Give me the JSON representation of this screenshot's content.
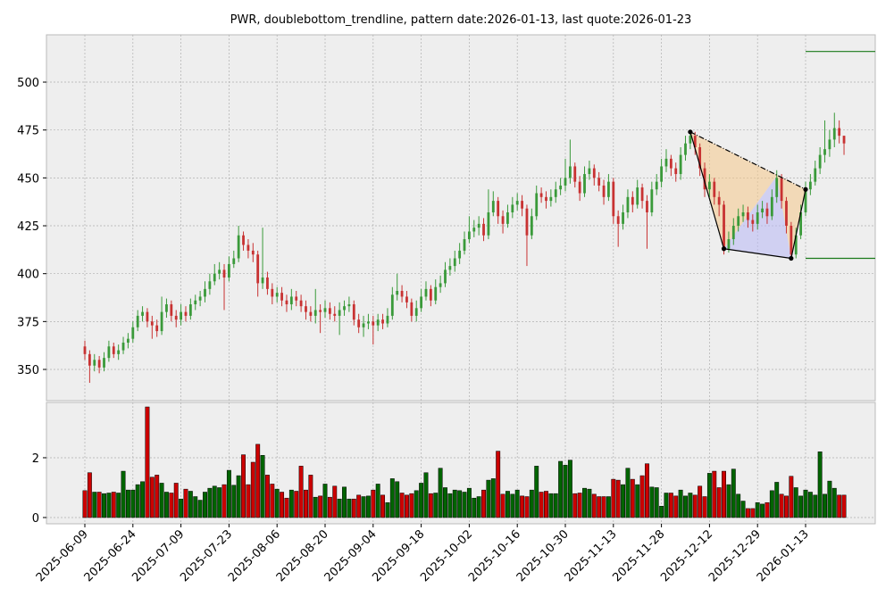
{
  "chart_data": {
    "type": "candlestick",
    "title": "PWR, doublebottom_trendline, pattern date:2026-01-13, last quote:2026-01-23",
    "categories": [
      "2025-06-09",
      null,
      null,
      null,
      null,
      null,
      null,
      null,
      null,
      null,
      "2025-06-24",
      null,
      null,
      null,
      null,
      null,
      null,
      null,
      null,
      null,
      "2025-07-09",
      null,
      null,
      null,
      null,
      null,
      null,
      null,
      null,
      null,
      "2025-07-23",
      null,
      null,
      null,
      null,
      null,
      null,
      null,
      null,
      null,
      "2025-08-06",
      null,
      null,
      null,
      null,
      null,
      null,
      null,
      null,
      null,
      "2025-08-20",
      null,
      null,
      null,
      null,
      null,
      null,
      null,
      null,
      null,
      "2025-09-04",
      null,
      null,
      null,
      null,
      null,
      null,
      null,
      null,
      null,
      "2025-09-18",
      null,
      null,
      null,
      null,
      null,
      null,
      null,
      null,
      null,
      "2025-10-02",
      null,
      null,
      null,
      null,
      null,
      null,
      null,
      null,
      null,
      "2025-10-16",
      null,
      null,
      null,
      null,
      null,
      null,
      null,
      null,
      null,
      "2025-10-30",
      null,
      null,
      null,
      null,
      null,
      null,
      null,
      null,
      null,
      "2025-11-13",
      null,
      null,
      null,
      null,
      null,
      null,
      null,
      null,
      null,
      "2025-11-28",
      null,
      null,
      null,
      null,
      null,
      null,
      null,
      null,
      null,
      "2025-12-12",
      null,
      null,
      null,
      null,
      null,
      null,
      null,
      null,
      null,
      "2025-12-29",
      null,
      null,
      null,
      null,
      null,
      null,
      null,
      null,
      null,
      "2026-01-13",
      null,
      null,
      null,
      null,
      null,
      null,
      null,
      null
    ],
    "open": [
      362,
      358,
      352,
      355,
      351,
      356,
      362,
      358,
      360,
      364,
      366,
      372,
      378,
      380,
      375,
      373,
      370,
      380,
      384,
      378,
      376,
      380,
      378,
      384,
      386,
      388,
      392,
      396,
      400,
      402,
      398,
      405,
      408,
      420,
      415,
      412,
      410,
      395,
      398,
      392,
      388,
      390,
      386,
      384,
      388,
      386,
      383,
      380,
      378,
      381,
      380,
      382,
      379,
      378,
      381,
      383,
      384,
      376,
      372,
      374,
      375,
      373,
      376,
      374,
      378,
      389,
      391,
      388,
      385,
      378,
      382,
      388,
      392,
      386,
      393,
      395,
      402,
      404,
      408,
      412,
      418,
      422,
      424,
      426,
      420,
      432,
      438,
      430,
      426,
      432,
      436,
      438,
      434,
      420,
      430,
      442,
      440,
      438,
      440,
      444,
      446,
      450,
      456,
      448,
      442,
      452,
      455,
      450,
      446,
      440,
      448,
      430,
      426,
      432,
      440,
      436,
      445,
      438,
      432,
      444,
      448,
      456,
      460,
      455,
      452,
      462,
      468,
      472,
      466,
      455,
      444,
      448,
      440,
      436,
      413,
      418,
      425,
      430,
      432,
      428,
      426,
      432,
      434,
      430,
      440,
      450,
      438,
      425,
      410,
      420,
      432,
      444,
      448,
      455,
      462,
      465,
      470,
      476,
      472
    ],
    "high": [
      365,
      360,
      358,
      357,
      359,
      365,
      364,
      363,
      367,
      369,
      375,
      381,
      383,
      382,
      378,
      376,
      388,
      387,
      386,
      381,
      384,
      383,
      387,
      389,
      391,
      396,
      400,
      405,
      406,
      405,
      409,
      412,
      425,
      422,
      418,
      416,
      412,
      424,
      401,
      395,
      393,
      393,
      389,
      392,
      391,
      389,
      386,
      383,
      392,
      384,
      386,
      385,
      383,
      385,
      386,
      388,
      386,
      379,
      378,
      379,
      378,
      379,
      379,
      382,
      393,
      400,
      394,
      391,
      387,
      386,
      392,
      396,
      394,
      397,
      399,
      406,
      408,
      412,
      416,
      422,
      430,
      428,
      430,
      429,
      444,
      443,
      440,
      433,
      436,
      440,
      442,
      441,
      436,
      434,
      446,
      445,
      443,
      444,
      448,
      450,
      460,
      470,
      458,
      451,
      456,
      459,
      457,
      453,
      449,
      452,
      450,
      433,
      436,
      444,
      443,
      449,
      447,
      441,
      448,
      452,
      460,
      465,
      462,
      458,
      466,
      472,
      475,
      474,
      468,
      458,
      452,
      450,
      443,
      438,
      422,
      429,
      434,
      436,
      435,
      431,
      436,
      438,
      437,
      444,
      454,
      452,
      440,
      427,
      424,
      436,
      448,
      452,
      459,
      466,
      480,
      475,
      484,
      480,
      472
    ],
    "low": [
      355,
      343,
      349,
      348,
      349,
      354,
      356,
      355,
      358,
      361,
      364,
      370,
      375,
      372,
      366,
      367,
      368,
      377,
      375,
      372,
      373,
      375,
      376,
      381,
      383,
      385,
      389,
      394,
      397,
      381,
      396,
      403,
      406,
      412,
      408,
      406,
      388,
      392,
      389,
      384,
      385,
      383,
      380,
      381,
      383,
      380,
      376,
      375,
      374,
      369,
      377,
      376,
      375,
      368,
      378,
      380,
      373,
      369,
      367,
      371,
      363,
      370,
      371,
      372,
      376,
      386,
      385,
      382,
      375,
      375,
      380,
      386,
      383,
      384,
      390,
      393,
      399,
      401,
      405,
      410,
      416,
      419,
      420,
      417,
      418,
      430,
      426,
      421,
      424,
      429,
      433,
      430,
      404,
      418,
      428,
      437,
      434,
      435,
      437,
      441,
      443,
      447,
      445,
      438,
      440,
      449,
      446,
      443,
      436,
      438,
      426,
      414,
      423,
      429,
      432,
      434,
      434,
      413,
      430,
      441,
      445,
      453,
      451,
      448,
      449,
      459,
      465,
      462,
      451,
      440,
      440,
      436,
      430,
      410,
      411,
      415,
      422,
      427,
      424,
      422,
      423,
      429,
      426,
      428,
      437,
      434,
      421,
      408,
      408,
      418,
      430,
      441,
      446,
      452,
      458,
      461,
      466,
      468,
      462
    ],
    "close": [
      358,
      352,
      355,
      351,
      356,
      362,
      358,
      360,
      364,
      366,
      372,
      378,
      380,
      375,
      373,
      370,
      380,
      384,
      378,
      376,
      380,
      378,
      384,
      386,
      388,
      392,
      396,
      400,
      402,
      398,
      405,
      408,
      420,
      415,
      412,
      410,
      395,
      398,
      392,
      388,
      390,
      386,
      384,
      388,
      386,
      383,
      380,
      378,
      381,
      380,
      382,
      379,
      378,
      381,
      383,
      384,
      376,
      372,
      374,
      375,
      373,
      376,
      374,
      378,
      389,
      391,
      388,
      385,
      378,
      382,
      388,
      392,
      386,
      393,
      395,
      402,
      404,
      408,
      412,
      418,
      422,
      424,
      426,
      420,
      432,
      438,
      430,
      426,
      432,
      436,
      438,
      434,
      420,
      430,
      442,
      440,
      438,
      440,
      444,
      446,
      450,
      456,
      448,
      442,
      452,
      455,
      450,
      446,
      440,
      448,
      430,
      426,
      432,
      440,
      436,
      445,
      438,
      432,
      444,
      448,
      456,
      460,
      455,
      452,
      462,
      468,
      472,
      466,
      455,
      444,
      448,
      440,
      436,
      413,
      418,
      425,
      430,
      432,
      428,
      426,
      432,
      434,
      430,
      440,
      450,
      438,
      425,
      410,
      420,
      432,
      444,
      448,
      455,
      462,
      465,
      470,
      476,
      472,
      468
    ],
    "up_color": "#3a9a3a",
    "down_color": "#c83232",
    "ylim": [
      333.7,
      524.7
    ],
    "yticks": [
      350,
      375,
      400,
      425,
      450,
      475,
      500
    ],
    "grid": true,
    "pattern": {
      "x": [
        126,
        133,
        144,
        147,
        150
      ],
      "y": [
        474,
        413,
        451,
        408,
        444
      ],
      "levels": [
        516,
        408
      ],
      "level_color": "#1a7a1a"
    },
    "volume": {
      "type": "bar",
      "values": [
        0.9,
        1.5,
        0.85,
        0.85,
        0.8,
        0.82,
        0.85,
        0.82,
        1.55,
        0.92,
        0.92,
        1.1,
        1.2,
        3.7,
        1.35,
        1.42,
        1.15,
        0.85,
        0.82,
        1.15,
        0.62,
        0.95,
        0.88,
        0.7,
        0.58,
        0.85,
        0.98,
        1.05,
        1.0,
        1.1,
        1.58,
        1.08,
        1.4,
        2.1,
        1.1,
        1.85,
        2.45,
        2.08,
        1.42,
        1.12,
        0.95,
        0.85,
        0.65,
        0.92,
        0.88,
        1.72,
        0.92,
        1.42,
        0.68,
        0.72,
        1.12,
        0.68,
        1.05,
        0.62,
        1.02,
        0.62,
        0.62,
        0.75,
        0.7,
        0.72,
        0.92,
        1.12,
        0.75,
        0.5,
        1.3,
        1.2,
        0.82,
        0.75,
        0.8,
        0.9,
        1.15,
        1.5,
        0.8,
        0.82,
        1.65,
        1.0,
        0.8,
        0.92,
        0.9,
        0.85,
        0.98,
        0.65,
        0.7,
        0.92,
        1.25,
        1.3,
        2.22,
        0.78,
        0.88,
        0.78,
        0.92,
        0.72,
        0.7,
        0.92,
        1.72,
        0.85,
        0.88,
        0.8,
        0.8,
        1.88,
        1.75,
        1.92,
        0.8,
        0.82,
        0.98,
        0.95,
        0.78,
        0.7,
        0.7,
        0.7,
        1.28,
        1.25,
        1.1,
        1.65,
        1.28,
        1.1,
        1.4,
        1.8,
        1.02,
        1.0,
        0.38,
        0.82,
        0.82,
        0.72,
        0.92,
        0.72,
        0.82,
        0.75,
        1.05,
        0.7,
        1.48,
        1.55,
        1.0,
        1.55,
        1.1,
        1.62,
        0.78,
        0.55,
        0.3,
        0.3,
        0.5,
        0.45,
        0.5,
        0.9,
        1.18,
        0.78,
        0.72,
        1.38,
        1.0,
        0.72,
        0.92,
        0.85,
        0.75,
        2.2,
        0.78,
        1.22,
        0.98,
        0.75,
        0.75
      ],
      "up_color": "#006400",
      "down_color": "#cc0000",
      "ylim": [
        -0.21,
        3.85
      ],
      "yticks": [
        0,
        2
      ]
    }
  }
}
